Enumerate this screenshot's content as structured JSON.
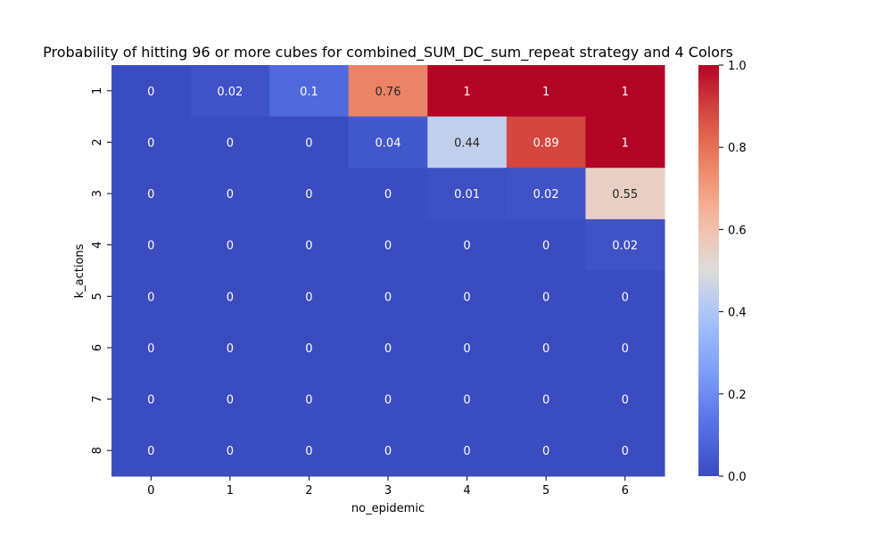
{
  "chart_data": {
    "type": "heatmap",
    "title": "Probability of hitting 96 or more cubes for combined_SUM_DC_sum_repeat strategy and 4 Colors",
    "xlabel": "no_epidemic",
    "ylabel": "k_actions",
    "x_categories": [
      "0",
      "1",
      "2",
      "3",
      "4",
      "5",
      "6"
    ],
    "y_categories": [
      "1",
      "2",
      "3",
      "4",
      "5",
      "6",
      "7",
      "8"
    ],
    "values": [
      [
        0,
        0.02,
        0.1,
        0.76,
        1,
        1,
        1
      ],
      [
        0,
        0,
        0,
        0.04,
        0.44,
        0.89,
        1
      ],
      [
        0,
        0,
        0,
        0,
        0.01,
        0.02,
        0.55
      ],
      [
        0,
        0,
        0,
        0,
        0,
        0,
        0.02
      ],
      [
        0,
        0,
        0,
        0,
        0,
        0,
        0
      ],
      [
        0,
        0,
        0,
        0,
        0,
        0,
        0
      ],
      [
        0,
        0,
        0,
        0,
        0,
        0,
        0
      ],
      [
        0,
        0,
        0,
        0,
        0,
        0,
        0
      ]
    ],
    "colormap": "coolwarm",
    "vmin": 0,
    "vmax": 1,
    "colorbar_ticks": [
      "0.0",
      "0.2",
      "0.4",
      "0.6",
      "0.8",
      "1.0"
    ],
    "grid": false
  }
}
